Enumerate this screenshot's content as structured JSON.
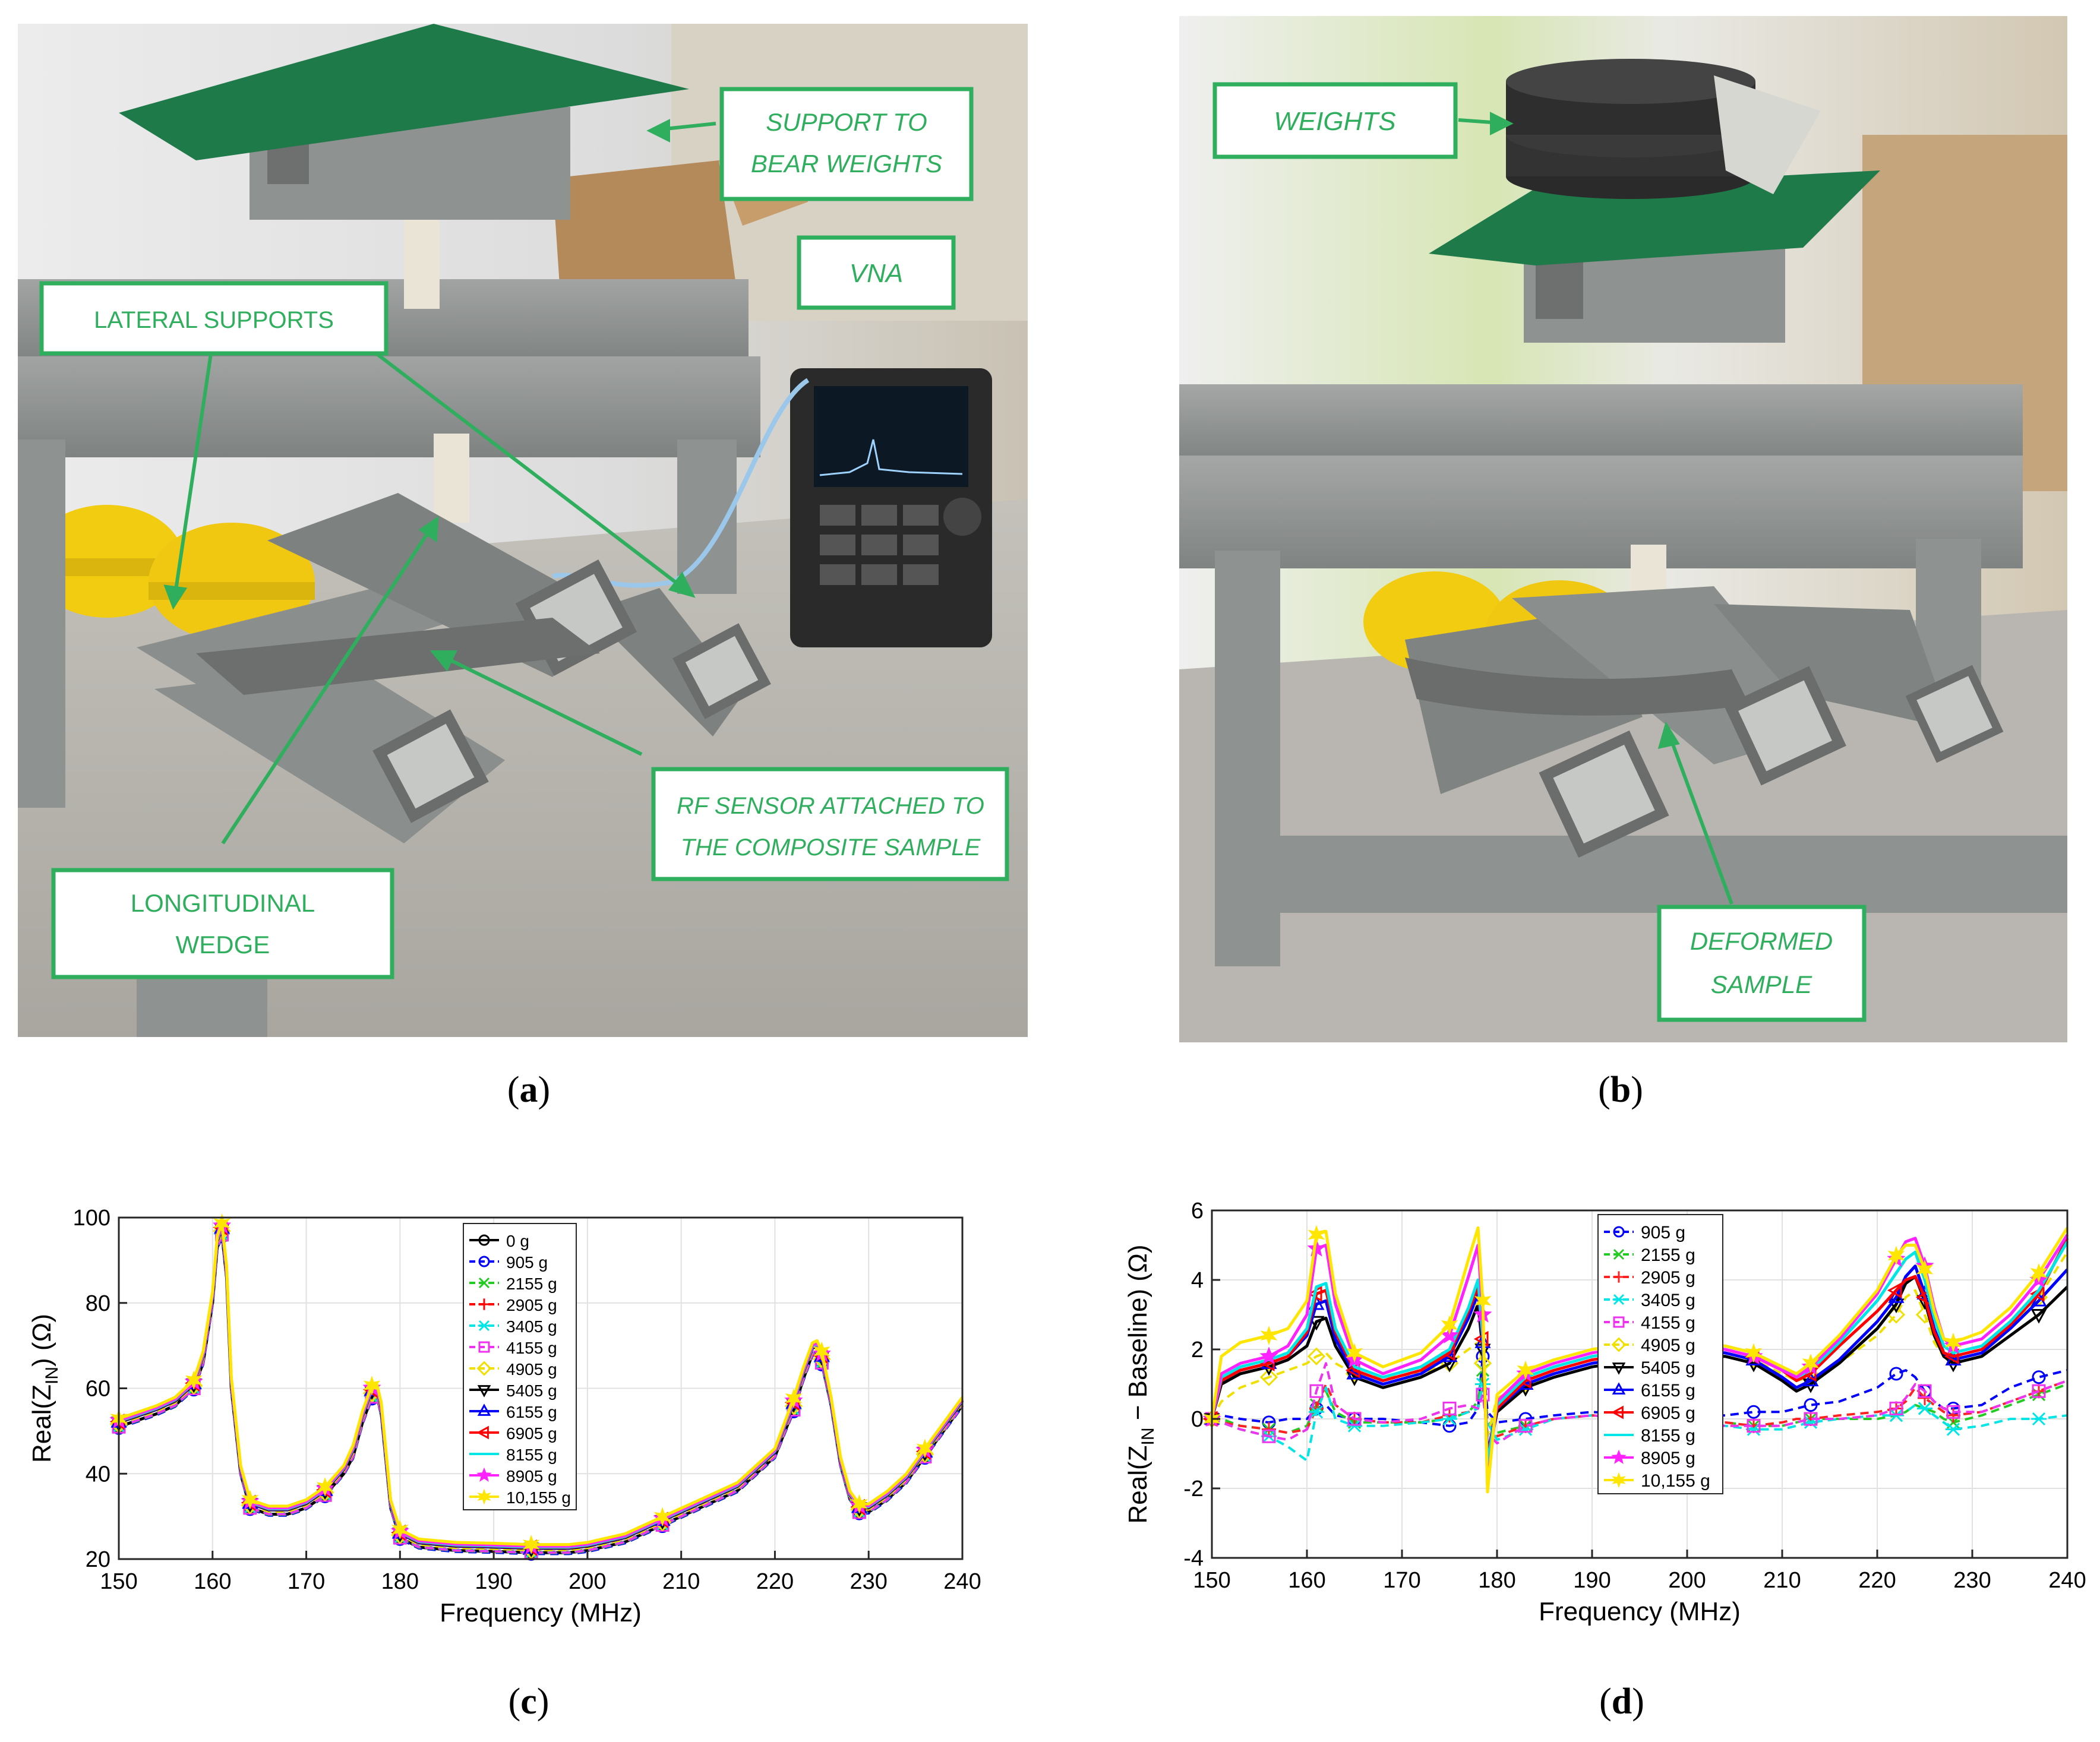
{
  "panel_a": {
    "callouts": [
      {
        "id": "support",
        "text": [
          "SUPPORT TO",
          "BEAR WEIGHTS"
        ],
        "italic": true
      },
      {
        "id": "vna",
        "text": [
          "VNA"
        ],
        "italic": true
      },
      {
        "id": "lateral",
        "text": [
          "LATERAL SUPPORTS"
        ],
        "italic": false
      },
      {
        "id": "rf",
        "text": [
          "RF SENSOR ATTACHED TO",
          "THE COMPOSITE SAMPLE"
        ],
        "italic": true
      },
      {
        "id": "longitudinal",
        "text": [
          "LONGITUDINAL",
          "WEDGE"
        ],
        "italic": false
      }
    ],
    "caption": "a"
  },
  "panel_b": {
    "callouts": [
      {
        "id": "weights",
        "text": [
          "WEIGHTS"
        ],
        "italic": true
      },
      {
        "id": "deformed",
        "text": [
          "DEFORMED",
          "SAMPLE"
        ],
        "italic": true
      }
    ],
    "caption": "b"
  },
  "colors": {
    "callout_green": "#2fae5e",
    "board_green": "#1f7a4a",
    "frame_gray": "#8e9290",
    "helmet_yellow": "#f2cc10"
  },
  "chart_data": [
    {
      "type": "line",
      "panel": "c",
      "xlabel": "Frequency (MHz)",
      "ylabel": "Real(Z_IN) (Ω)",
      "xlim": [
        150,
        240
      ],
      "ylim": [
        20,
        100
      ],
      "xticks": [
        150,
        160,
        170,
        180,
        190,
        200,
        210,
        220,
        230,
        240
      ],
      "yticks": [
        20,
        40,
        60,
        80,
        100
      ],
      "grid": true,
      "legend_position": "upper-center",
      "x": [
        150,
        152,
        154,
        156,
        158,
        159,
        160,
        160.5,
        161,
        161.5,
        162,
        163,
        164,
        166,
        168,
        170,
        172,
        174,
        175,
        176,
        177,
        177.5,
        178,
        179,
        180,
        182,
        186,
        190,
        194,
        198,
        200,
        204,
        208,
        212,
        216,
        220,
        222,
        223,
        224,
        224.5,
        225,
        226,
        227,
        228,
        229,
        230,
        232,
        234,
        236,
        238,
        240
      ],
      "series": [
        {
          "name": "0 g",
          "color": "#000000",
          "marker": "circle",
          "dash": "solid",
          "offset": 0
        },
        {
          "name": "905 g",
          "color": "#0000ff",
          "marker": "circle",
          "dash": "dash",
          "offset": -0.3
        },
        {
          "name": "2155 g",
          "color": "#22cc22",
          "marker": "x",
          "dash": "dash",
          "offset": -0.1
        },
        {
          "name": "2905 g",
          "color": "#ff0000",
          "marker": "plus",
          "dash": "dash",
          "offset": 0.2
        },
        {
          "name": "3405 g",
          "color": "#00e5e5",
          "marker": "star",
          "dash": "dash",
          "offset": 0.1
        },
        {
          "name": "4155 g",
          "color": "#ee33ee",
          "marker": "square",
          "dash": "dash",
          "offset": 0.0
        },
        {
          "name": "4905 g",
          "color": "#f0e000",
          "marker": "diamond",
          "dash": "dash",
          "offset": 0.6
        },
        {
          "name": "5405 g",
          "color": "#000000",
          "marker": "triangle-down",
          "dash": "solid",
          "offset": 1.0
        },
        {
          "name": "6155 g",
          "color": "#0000ff",
          "marker": "triangle-up",
          "dash": "solid",
          "offset": 1.1
        },
        {
          "name": "6905 g",
          "color": "#ff0000",
          "marker": "triangle-left",
          "dash": "solid",
          "offset": 1.2
        },
        {
          "name": "8155 g",
          "color": "#00e5e5",
          "marker": "none",
          "dash": "solid",
          "offset": 1.3
        },
        {
          "name": "8905 g",
          "color": "#ff22ff",
          "marker": "pentagram",
          "dash": "solid",
          "offset": 1.5
        },
        {
          "name": "10,155 g",
          "color": "#ffe600",
          "marker": "hexagram",
          "dash": "solid",
          "offset": 1.9
        }
      ],
      "base_values": [
        51,
        52.5,
        54,
        56,
        60,
        66,
        80,
        93,
        96,
        86,
        60,
        40,
        32,
        30.5,
        30.5,
        32,
        35,
        40,
        44,
        52,
        58,
        58.5,
        54,
        32,
        25,
        22.8,
        22,
        21.8,
        21.5,
        21.5,
        22,
        24,
        28,
        32,
        36,
        44,
        55,
        62,
        68,
        68.5,
        66,
        56,
        42,
        34,
        31,
        31,
        34,
        38,
        44,
        50,
        56
      ],
      "caption": "c"
    },
    {
      "type": "line",
      "panel": "d",
      "xlabel": "Frequency (MHz)",
      "ylabel": "Real(Z_IN − Baseline) (Ω)",
      "xlim": [
        150,
        240
      ],
      "ylim": [
        -4,
        6
      ],
      "xticks": [
        150,
        160,
        170,
        180,
        190,
        200,
        210,
        220,
        230,
        240
      ],
      "yticks": [
        -4,
        -2,
        0,
        2,
        4,
        6
      ],
      "grid": true,
      "legend_position": "upper-center",
      "x": [
        150,
        151,
        153,
        156,
        158,
        160,
        161,
        162,
        163,
        165,
        168,
        172,
        175,
        177,
        178,
        178.5,
        179,
        180,
        183,
        186,
        190,
        195,
        200,
        204,
        207,
        210,
        211.5,
        213,
        216,
        220,
        222,
        223,
        224,
        225,
        226,
        227,
        228,
        231,
        234,
        237,
        240
      ],
      "series": [
        {
          "name": "905 g",
          "color": "#0000ff",
          "marker": "circle",
          "dash": "dash",
          "values": [
            0,
            0.1,
            0.0,
            -0.1,
            0.0,
            0.0,
            0.3,
            0.4,
            0.1,
            0.0,
            0.0,
            -0.1,
            -0.2,
            -0.1,
            0.3,
            1.8,
            0.2,
            -0.1,
            0.0,
            0.1,
            0.2,
            0.1,
            0.1,
            0.1,
            0.2,
            0.2,
            0.3,
            0.4,
            0.5,
            0.9,
            1.3,
            1.4,
            1.2,
            0.8,
            0.5,
            0.3,
            0.3,
            0.4,
            0.9,
            1.2,
            1.4
          ]
        },
        {
          "name": "2155 g",
          "color": "#22cc22",
          "marker": "x",
          "dash": "dash",
          "values": [
            0,
            0.0,
            -0.2,
            -0.3,
            -0.4,
            -0.2,
            0.4,
            0.8,
            0.2,
            -0.1,
            -0.1,
            -0.1,
            0.0,
            0.2,
            0.5,
            1.4,
            0.0,
            -0.4,
            -0.2,
            0.0,
            0.1,
            0.0,
            -0.1,
            -0.1,
            -0.2,
            -0.2,
            -0.1,
            0.0,
            0.0,
            0.0,
            0.1,
            0.2,
            0.4,
            0.3,
            0.2,
            0.0,
            -0.1,
            0.1,
            0.4,
            0.7,
            1.0
          ]
        },
        {
          "name": "2905 g",
          "color": "#ff2222",
          "marker": "plus",
          "dash": "dash",
          "values": [
            0,
            -0.1,
            -0.2,
            -0.3,
            -0.4,
            -0.3,
            0.3,
            1.0,
            0.4,
            0.0,
            -0.1,
            -0.1,
            0.1,
            0.2,
            0.3,
            1.0,
            0.0,
            -0.5,
            -0.2,
            0.0,
            0.1,
            0.0,
            -0.1,
            -0.1,
            -0.2,
            -0.1,
            0.0,
            0.0,
            0.1,
            0.2,
            0.3,
            0.5,
            0.9,
            0.6,
            0.4,
            0.2,
            0.1,
            0.2,
            0.5,
            0.8,
            1.1
          ]
        },
        {
          "name": "3405 g",
          "color": "#00e5e5",
          "marker": "star",
          "dash": "dash",
          "values": [
            0,
            -0.1,
            -0.3,
            -0.5,
            -0.8,
            -1.2,
            0.2,
            0.9,
            0.0,
            -0.2,
            -0.2,
            -0.1,
            0.0,
            0.2,
            0.3,
            1.0,
            -0.1,
            -0.6,
            -0.3,
            0.0,
            0.1,
            0.0,
            -0.1,
            -0.2,
            -0.3,
            -0.3,
            -0.2,
            -0.1,
            0.0,
            0.1,
            0.1,
            0.2,
            0.4,
            0.3,
            0.1,
            -0.1,
            -0.3,
            -0.2,
            0.0,
            0.0,
            0.1
          ]
        },
        {
          "name": "4155 g",
          "color": "#ee33ee",
          "marker": "square",
          "dash": "dash",
          "values": [
            0,
            -0.1,
            -0.3,
            -0.5,
            -0.6,
            -0.3,
            0.8,
            1.6,
            0.4,
            0.0,
            -0.1,
            0.0,
            0.3,
            0.4,
            0.3,
            0.7,
            -0.4,
            -0.7,
            -0.2,
            0.0,
            0.1,
            0.0,
            -0.1,
            -0.2,
            -0.2,
            -0.2,
            -0.1,
            0.0,
            0.0,
            0.1,
            0.3,
            0.6,
            1.0,
            0.8,
            0.5,
            0.3,
            0.2,
            0.2,
            0.5,
            0.8,
            1.1
          ]
        },
        {
          "name": "4905 g",
          "color": "#f0e000",
          "marker": "diamond",
          "dash": "dash",
          "values": [
            0,
            0.5,
            0.9,
            1.2,
            1.4,
            1.6,
            1.8,
            1.9,
            1.6,
            1.3,
            1.2,
            1.3,
            1.6,
            2.0,
            2.2,
            1.6,
            -0.5,
            0.6,
            1.0,
            1.2,
            1.5,
            1.7,
            1.9,
            1.9,
            1.7,
            1.3,
            1.1,
            1.2,
            1.6,
            2.4,
            3.0,
            3.5,
            3.7,
            3.0,
            2.2,
            1.8,
            1.8,
            2.0,
            2.6,
            3.5,
            4.8
          ]
        },
        {
          "name": "5405 g",
          "color": "#000000",
          "marker": "triangle-down",
          "dash": "solid",
          "values": [
            0,
            1.0,
            1.3,
            1.5,
            1.7,
            2.1,
            2.8,
            2.9,
            2.1,
            1.2,
            0.9,
            1.2,
            1.6,
            2.6,
            3.3,
            2.0,
            -1.2,
            0.2,
            0.9,
            1.2,
            1.5,
            1.7,
            1.8,
            1.8,
            1.6,
            1.1,
            0.8,
            1.0,
            1.6,
            2.6,
            3.3,
            3.9,
            4.1,
            3.4,
            2.4,
            1.8,
            1.6,
            1.8,
            2.4,
            3.0,
            3.8
          ]
        },
        {
          "name": "6155 g",
          "color": "#0000ff",
          "marker": "triangle-up",
          "dash": "solid",
          "values": [
            0,
            1.1,
            1.4,
            1.6,
            1.8,
            2.4,
            3.3,
            3.4,
            2.3,
            1.3,
            1.0,
            1.3,
            1.8,
            2.9,
            3.6,
            2.2,
            -1.0,
            0.3,
            1.0,
            1.3,
            1.6,
            1.8,
            1.9,
            1.9,
            1.7,
            1.2,
            0.9,
            1.1,
            1.7,
            2.8,
            3.5,
            4.1,
            4.4,
            3.6,
            2.6,
            1.9,
            1.7,
            1.9,
            2.6,
            3.4,
            4.3
          ]
        },
        {
          "name": "6905 g",
          "color": "#ff0000",
          "marker": "triangle-left",
          "dash": "solid",
          "values": [
            0,
            1.1,
            1.4,
            1.6,
            1.8,
            2.5,
            3.6,
            3.7,
            2.5,
            1.4,
            1.1,
            1.4,
            1.9,
            3.1,
            3.8,
            2.3,
            -1.1,
            0.3,
            1.1,
            1.4,
            1.7,
            1.9,
            2.0,
            2.0,
            1.8,
            1.4,
            1.1,
            1.3,
            2.1,
            3.1,
            3.7,
            4.0,
            4.1,
            3.5,
            2.5,
            1.9,
            1.8,
            2.0,
            2.7,
            3.6,
            5.2
          ]
        },
        {
          "name": "8155 g",
          "color": "#00e5e5",
          "marker": "none",
          "dash": "solid",
          "values": [
            0,
            1.2,
            1.5,
            1.7,
            1.9,
            2.6,
            3.8,
            3.9,
            2.6,
            1.5,
            1.2,
            1.5,
            2.0,
            3.2,
            4.0,
            2.4,
            -1.3,
            0.4,
            1.2,
            1.5,
            1.8,
            2.0,
            2.1,
            2.1,
            1.9,
            1.5,
            1.2,
            1.4,
            2.2,
            3.4,
            4.2,
            4.6,
            4.8,
            4.0,
            2.9,
            2.1,
            1.9,
            2.1,
            2.8,
            3.7,
            5.1
          ]
        },
        {
          "name": "8905 g",
          "color": "#ff22ff",
          "marker": "pentagram",
          "dash": "solid",
          "values": [
            0,
            1.3,
            1.6,
            1.8,
            2.1,
            3.0,
            4.9,
            5.0,
            3.3,
            1.7,
            1.3,
            1.7,
            2.4,
            4.1,
            5.0,
            3.0,
            -1.9,
            0.5,
            1.3,
            1.6,
            1.9,
            2.1,
            2.1,
            2.0,
            1.8,
            1.4,
            1.2,
            1.5,
            2.3,
            3.6,
            4.6,
            5.1,
            5.2,
            4.4,
            3.2,
            2.3,
            2.1,
            2.3,
            3.0,
            4.0,
            5.3
          ]
        },
        {
          "name": "10,155 g",
          "color": "#ffe600",
          "marker": "hexagram",
          "dash": "solid",
          "values": [
            0,
            1.8,
            2.2,
            2.4,
            2.6,
            3.4,
            5.3,
            5.4,
            3.6,
            1.9,
            1.5,
            1.9,
            2.7,
            4.6,
            5.5,
            3.4,
            -2.1,
            0.7,
            1.4,
            1.7,
            2.0,
            2.2,
            2.2,
            2.1,
            1.9,
            1.5,
            1.3,
            1.6,
            2.4,
            3.7,
            4.7,
            5.0,
            5.0,
            4.3,
            3.1,
            2.3,
            2.2,
            2.5,
            3.2,
            4.2,
            5.5
          ]
        }
      ],
      "caption": "d"
    }
  ]
}
